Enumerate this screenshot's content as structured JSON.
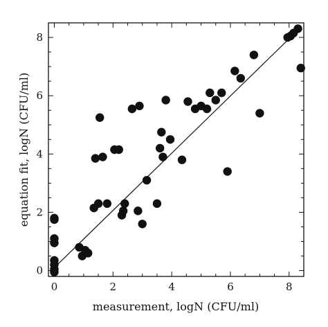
{
  "chart_data": {
    "type": "scatter",
    "xlabel": "measurement, logN  (CFU/ml)",
    "ylabel": "equation fit,  logN  (CFU/ml)",
    "xlim": [
      -0.2,
      8.5
    ],
    "ylim": [
      -0.2,
      8.5
    ],
    "xticks": [
      0,
      2,
      4,
      6,
      8
    ],
    "yticks": [
      0,
      2,
      4,
      6,
      8
    ],
    "grid": false,
    "fit_line": {
      "x": [
        0,
        8.35
      ],
      "y": [
        0.1,
        8.3
      ]
    },
    "points": [
      {
        "x": 0.0,
        "y": 1.8
      },
      {
        "x": 0.0,
        "y": 1.75
      },
      {
        "x": 0.0,
        "y": 1.1
      },
      {
        "x": 0.0,
        "y": 0.95
      },
      {
        "x": 0.0,
        "y": 0.35
      },
      {
        "x": 0.0,
        "y": 0.2
      },
      {
        "x": 0.0,
        "y": 0.05
      },
      {
        "x": 0.0,
        "y": -0.05
      },
      {
        "x": 0.85,
        "y": 0.8
      },
      {
        "x": 0.95,
        "y": 0.5
      },
      {
        "x": 1.05,
        "y": 0.7
      },
      {
        "x": 1.15,
        "y": 0.6
      },
      {
        "x": 1.35,
        "y": 2.15
      },
      {
        "x": 1.4,
        "y": 3.85
      },
      {
        "x": 1.5,
        "y": 2.3
      },
      {
        "x": 1.55,
        "y": 5.25
      },
      {
        "x": 1.65,
        "y": 3.9
      },
      {
        "x": 1.8,
        "y": 2.3
      },
      {
        "x": 2.05,
        "y": 4.15
      },
      {
        "x": 2.2,
        "y": 4.15
      },
      {
        "x": 2.3,
        "y": 1.9
      },
      {
        "x": 2.35,
        "y": 2.05
      },
      {
        "x": 2.4,
        "y": 2.3
      },
      {
        "x": 2.65,
        "y": 5.55
      },
      {
        "x": 2.85,
        "y": 2.05
      },
      {
        "x": 2.9,
        "y": 5.65
      },
      {
        "x": 3.0,
        "y": 1.6
      },
      {
        "x": 3.15,
        "y": 3.1
      },
      {
        "x": 3.5,
        "y": 2.3
      },
      {
        "x": 3.6,
        "y": 4.2
      },
      {
        "x": 3.65,
        "y": 4.75
      },
      {
        "x": 3.7,
        "y": 3.9
      },
      {
        "x": 3.8,
        "y": 5.85
      },
      {
        "x": 3.95,
        "y": 4.5
      },
      {
        "x": 4.35,
        "y": 3.8
      },
      {
        "x": 4.55,
        "y": 5.8
      },
      {
        "x": 4.8,
        "y": 5.55
      },
      {
        "x": 5.0,
        "y": 5.65
      },
      {
        "x": 5.2,
        "y": 5.55
      },
      {
        "x": 5.3,
        "y": 6.1
      },
      {
        "x": 5.5,
        "y": 5.85
      },
      {
        "x": 5.7,
        "y": 6.1
      },
      {
        "x": 5.9,
        "y": 3.4
      },
      {
        "x": 6.15,
        "y": 6.85
      },
      {
        "x": 6.35,
        "y": 6.6
      },
      {
        "x": 6.8,
        "y": 7.4
      },
      {
        "x": 7.0,
        "y": 5.4
      },
      {
        "x": 7.95,
        "y": 8.0
      },
      {
        "x": 8.05,
        "y": 8.05
      },
      {
        "x": 8.15,
        "y": 8.15
      },
      {
        "x": 8.3,
        "y": 8.3
      },
      {
        "x": 8.4,
        "y": 6.95
      }
    ]
  }
}
